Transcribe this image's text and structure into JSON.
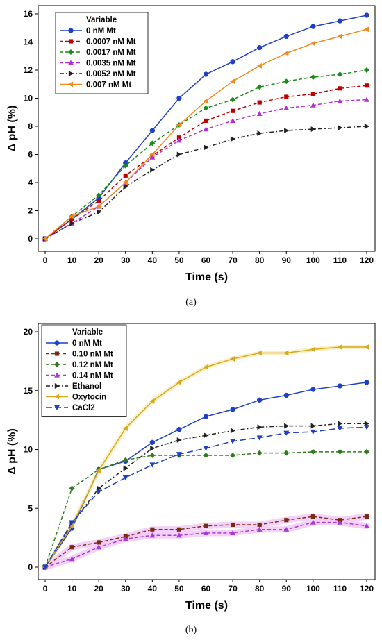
{
  "chart_data": [
    {
      "panel": "(a)",
      "type": "line",
      "xlabel": "Time (s)",
      "ylabel": "Δ pH (%)",
      "xlim": [
        0,
        120
      ],
      "ylim": [
        0,
        16
      ],
      "xticks": [
        0,
        10,
        20,
        30,
        40,
        50,
        60,
        70,
        80,
        90,
        100,
        110,
        120
      ],
      "yticks": [
        0,
        2,
        4,
        6,
        8,
        10,
        12,
        14,
        16
      ],
      "grid": false,
      "legend_title": "Variable",
      "legend_position": "top-left",
      "x": [
        0,
        10,
        20,
        30,
        40,
        50,
        60,
        70,
        80,
        90,
        100,
        110,
        120
      ],
      "series": [
        {
          "name": "0 nM Mt",
          "color": "#1f3fc4",
          "marker": "circle",
          "dash": "solid",
          "values": [
            0,
            1.4,
            2.9,
            5.4,
            7.7,
            10.0,
            11.7,
            12.6,
            13.6,
            14.4,
            15.1,
            15.5,
            15.9
          ]
        },
        {
          "name": "0.0007 nM Mt",
          "color": "#c00000",
          "marker": "square",
          "dash": "dash",
          "values": [
            0,
            1.4,
            2.7,
            4.5,
            5.9,
            7.2,
            8.4,
            9.1,
            9.7,
            10.1,
            10.3,
            10.7,
            10.9
          ]
        },
        {
          "name": "0.0017 nM Mt",
          "color": "#1a8a1a",
          "marker": "diamond",
          "dash": "dash",
          "values": [
            0,
            1.6,
            3.1,
            5.2,
            6.8,
            8.1,
            9.3,
            9.9,
            10.8,
            11.2,
            11.5,
            11.7,
            12.0
          ]
        },
        {
          "name": "0.0035 nM Mt",
          "color": "#b62dd6",
          "marker": "triangle-up",
          "dash": "dash",
          "values": [
            0,
            1.1,
            2.3,
            4.0,
            5.8,
            7.0,
            7.8,
            8.4,
            8.9,
            9.3,
            9.5,
            9.8,
            9.9
          ]
        },
        {
          "name": "0.0052 nM Mt",
          "color": "#222222",
          "marker": "triangle-right",
          "dash": "dashdot",
          "values": [
            0,
            1.1,
            1.9,
            3.7,
            4.9,
            6.0,
            6.5,
            7.1,
            7.5,
            7.7,
            7.8,
            7.9,
            8.0
          ]
        },
        {
          "name": "0.007 nM Mt",
          "color": "#f08a1a",
          "marker": "triangle-left",
          "dash": "solid",
          "values": [
            0,
            1.6,
            2.3,
            4.0,
            6.0,
            8.1,
            9.8,
            11.2,
            12.3,
            13.2,
            13.9,
            14.4,
            14.9
          ]
        }
      ]
    },
    {
      "panel": "(b)",
      "type": "line",
      "xlabel": "Time (s)",
      "ylabel": "Δ pH (%)",
      "xlim": [
        0,
        120
      ],
      "ylim": [
        0,
        20
      ],
      "xticks": [
        0,
        10,
        20,
        30,
        40,
        50,
        60,
        70,
        80,
        90,
        100,
        110,
        120
      ],
      "yticks": [
        0,
        5,
        10,
        15,
        20
      ],
      "grid": false,
      "legend_title": "Variable",
      "legend_position": "top-left",
      "x": [
        0,
        10,
        20,
        30,
        40,
        50,
        60,
        70,
        80,
        90,
        100,
        110,
        120
      ],
      "series": [
        {
          "name": "0 nM Mt",
          "color": "#1f3fc4",
          "marker": "circle",
          "dash": "solid",
          "values": [
            0,
            3.3,
            8.3,
            9.0,
            10.6,
            11.7,
            12.8,
            13.4,
            14.2,
            14.6,
            15.1,
            15.4,
            15.7
          ]
        },
        {
          "name": "0.10 nM Mt",
          "color": "#7a2a14",
          "marker": "square",
          "dash": "dash",
          "values": [
            0,
            1.7,
            2.1,
            2.6,
            3.2,
            3.2,
            3.5,
            3.6,
            3.6,
            4.0,
            4.3,
            4.0,
            4.3
          ]
        },
        {
          "name": "0.12 nM Mt",
          "color": "#2e7d1a",
          "marker": "diamond",
          "dash": "dash",
          "values": [
            0,
            6.7,
            8.3,
            9.1,
            9.5,
            9.5,
            9.5,
            9.5,
            9.7,
            9.7,
            9.8,
            9.8,
            9.8
          ]
        },
        {
          "name": "0.14 nM Mt",
          "color": "#a83ad8",
          "marker": "triangle-up",
          "dash": "dash",
          "values": [
            0,
            0.7,
            1.7,
            2.4,
            2.7,
            2.7,
            2.9,
            2.9,
            3.2,
            3.2,
            3.8,
            3.8,
            3.5
          ]
        },
        {
          "name": "Ethanol",
          "color": "#222222",
          "marker": "triangle-right",
          "dash": "dashdot",
          "values": [
            0,
            3.7,
            6.7,
            8.4,
            10.1,
            10.8,
            11.2,
            11.6,
            11.9,
            12.0,
            12.0,
            12.2,
            12.2
          ]
        },
        {
          "name": "Oxytocin",
          "color": "#d8a820",
          "marker": "triangle-left",
          "dash": "solid",
          "values": [
            0,
            3.5,
            8.2,
            11.8,
            14.1,
            15.7,
            17.0,
            17.7,
            18.2,
            18.2,
            18.5,
            18.7,
            18.7
          ]
        },
        {
          "name": "CaCl2",
          "color": "#1f3fc4",
          "marker": "triangle-down",
          "dash": "longdash",
          "values": [
            0,
            3.8,
            6.4,
            7.6,
            8.7,
            9.6,
            10.1,
            10.7,
            11.0,
            11.4,
            11.5,
            11.8,
            11.9
          ]
        }
      ]
    }
  ],
  "captions": [
    "(a)",
    "(b)"
  ],
  "colors": {
    "axis": "#000000",
    "background": "#ffffff",
    "highlight_purple": "#f2c9f7",
    "highlight_yellow": "#f8efb8"
  }
}
